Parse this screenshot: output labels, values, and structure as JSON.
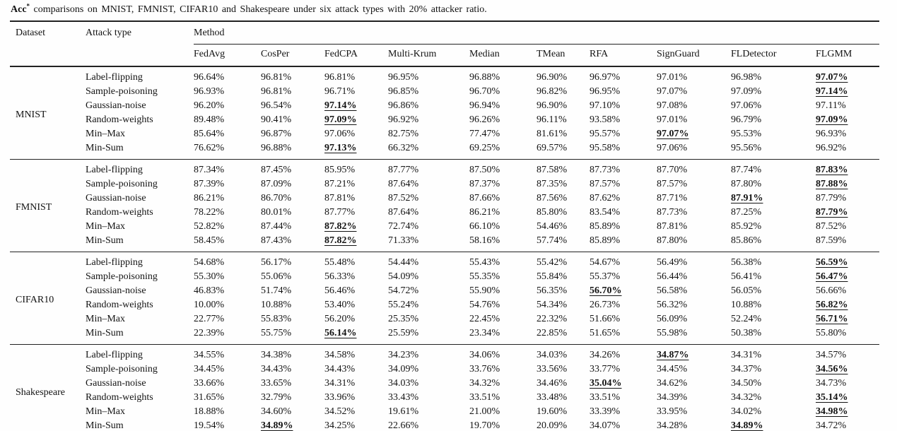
{
  "theme": {
    "ink_color": "#141414",
    "rule_color": "#222222",
    "background": "#fefefe"
  },
  "caption": {
    "label": "Acc",
    "superscript": "*",
    "text": " comparisons on MNIST, FMNIST, CIFAR10 and Shakespeare under six attack types with 20% attacker ratio."
  },
  "table": {
    "headers": {
      "dataset": "Dataset",
      "attack_type": "Attack type",
      "method_group": "Method",
      "methods": [
        "FedAvg",
        "CosPer",
        "FedCPA",
        "Multi-Krum",
        "Median",
        "TMean",
        "RFA",
        "SignGuard",
        "FLDetector",
        "FLGMM"
      ]
    },
    "sections": [
      {
        "dataset": "MNIST",
        "rows": [
          {
            "attack": "Label-flipping",
            "values": [
              "96.64%",
              "96.81%",
              "96.81%",
              "96.95%",
              "96.88%",
              "96.90%",
              "96.97%",
              "97.01%",
              "96.98%",
              "97.07%"
            ],
            "best": [
              9
            ]
          },
          {
            "attack": "Sample-poisoning",
            "values": [
              "96.93%",
              "96.81%",
              "96.71%",
              "96.85%",
              "96.70%",
              "96.82%",
              "96.95%",
              "97.07%",
              "97.09%",
              "97.14%"
            ],
            "best": [
              9
            ]
          },
          {
            "attack": "Gaussian-noise",
            "values": [
              "96.20%",
              "96.54%",
              "97.14%",
              "96.86%",
              "96.94%",
              "96.90%",
              "97.10%",
              "97.08%",
              "97.06%",
              "97.11%"
            ],
            "best": [
              2
            ]
          },
          {
            "attack": "Random-weights",
            "values": [
              "89.48%",
              "90.41%",
              "97.09%",
              "96.92%",
              "96.26%",
              "96.11%",
              "93.58%",
              "97.01%",
              "96.79%",
              "97.09%"
            ],
            "best": [
              2,
              9
            ]
          },
          {
            "attack": "Min–Max",
            "values": [
              "85.64%",
              "96.87%",
              "97.06%",
              "82.75%",
              "77.47%",
              "81.61%",
              "95.57%",
              "97.07%",
              "95.53%",
              "96.93%"
            ],
            "best": [
              7
            ]
          },
          {
            "attack": "Min-Sum",
            "values": [
              "76.62%",
              "96.88%",
              "97.13%",
              "66.32%",
              "69.25%",
              "69.57%",
              "95.58%",
              "97.06%",
              "95.56%",
              "96.92%"
            ],
            "best": [
              2
            ]
          }
        ]
      },
      {
        "dataset": "FMNIST",
        "rows": [
          {
            "attack": "Label-flipping",
            "values": [
              "87.34%",
              "87.45%",
              "85.95%",
              "87.77%",
              "87.50%",
              "87.58%",
              "87.73%",
              "87.70%",
              "87.74%",
              "87.83%"
            ],
            "best": [
              9
            ]
          },
          {
            "attack": "Sample-poisoning",
            "values": [
              "87.39%",
              "87.09%",
              "87.21%",
              "87.64%",
              "87.37%",
              "87.35%",
              "87.57%",
              "87.57%",
              "87.80%",
              "87.88%"
            ],
            "best": [
              9
            ]
          },
          {
            "attack": "Gaussian-noise",
            "values": [
              "86.21%",
              "86.70%",
              "87.81%",
              "87.52%",
              "87.66%",
              "87.56%",
              "87.62%",
              "87.71%",
              "87.91%",
              "87.79%"
            ],
            "best": [
              8
            ]
          },
          {
            "attack": "Random-weights",
            "values": [
              "78.22%",
              "80.01%",
              "87.77%",
              "87.64%",
              "86.21%",
              "85.80%",
              "83.54%",
              "87.73%",
              "87.25%",
              "87.79%"
            ],
            "best": [
              9
            ]
          },
          {
            "attack": "Min–Max",
            "values": [
              "52.82%",
              "87.44%",
              "87.82%",
              "72.74%",
              "66.10%",
              "54.46%",
              "85.89%",
              "87.81%",
              "85.92%",
              "87.52%"
            ],
            "best": [
              2
            ]
          },
          {
            "attack": "Min-Sum",
            "values": [
              "58.45%",
              "87.43%",
              "87.82%",
              "71.33%",
              "58.16%",
              "57.74%",
              "85.89%",
              "87.80%",
              "85.86%",
              "87.59%"
            ],
            "best": [
              2
            ]
          }
        ]
      },
      {
        "dataset": "CIFAR10",
        "rows": [
          {
            "attack": "Label-flipping",
            "values": [
              "54.68%",
              "56.17%",
              "55.48%",
              "54.44%",
              "55.43%",
              "55.42%",
              "54.67%",
              "56.49%",
              "56.38%",
              "56.59%"
            ],
            "best": [
              9
            ]
          },
          {
            "attack": "Sample-poisoning",
            "values": [
              "55.30%",
              "55.06%",
              "56.33%",
              "54.09%",
              "55.35%",
              "55.84%",
              "55.37%",
              "56.44%",
              "56.41%",
              "56.47%"
            ],
            "best": [
              9
            ]
          },
          {
            "attack": "Gaussian-noise",
            "values": [
              "46.83%",
              "51.74%",
              "56.46%",
              "54.72%",
              "55.90%",
              "56.35%",
              "56.70%",
              "56.58%",
              "56.05%",
              "56.66%"
            ],
            "best": [
              6
            ]
          },
          {
            "attack": "Random-weights",
            "values": [
              "10.00%",
              "10.88%",
              "53.40%",
              "55.24%",
              "54.76%",
              "54.34%",
              "26.73%",
              "56.32%",
              "10.88%",
              "56.82%"
            ],
            "best": [
              9
            ]
          },
          {
            "attack": "Min–Max",
            "values": [
              "22.77%",
              "55.83%",
              "56.20%",
              "25.35%",
              "22.45%",
              "22.32%",
              "51.66%",
              "56.09%",
              "52.24%",
              "56.71%"
            ],
            "best": [
              9
            ]
          },
          {
            "attack": "Min-Sum",
            "values": [
              "22.39%",
              "55.75%",
              "56.14%",
              "25.59%",
              "23.34%",
              "22.85%",
              "51.65%",
              "55.98%",
              "50.38%",
              "55.80%"
            ],
            "best": [
              2
            ]
          }
        ]
      },
      {
        "dataset": "Shakespeare",
        "rows": [
          {
            "attack": "Label-flipping",
            "values": [
              "34.55%",
              "34.38%",
              "34.58%",
              "34.23%",
              "34.06%",
              "34.03%",
              "34.26%",
              "34.87%",
              "34.31%",
              "34.57%"
            ],
            "best": [
              7
            ]
          },
          {
            "attack": "Sample-poisoning",
            "values": [
              "34.45%",
              "34.43%",
              "34.43%",
              "34.09%",
              "33.76%",
              "33.56%",
              "33.77%",
              "34.45%",
              "34.37%",
              "34.56%"
            ],
            "best": [
              9
            ]
          },
          {
            "attack": "Gaussian-noise",
            "values": [
              "33.66%",
              "33.65%",
              "34.31%",
              "34.03%",
              "34.32%",
              "34.46%",
              "35.04%",
              "34.62%",
              "34.50%",
              "34.73%"
            ],
            "best": [
              6
            ]
          },
          {
            "attack": "Random-weights",
            "values": [
              "31.65%",
              "32.79%",
              "33.96%",
              "33.43%",
              "33.51%",
              "33.48%",
              "33.51%",
              "34.39%",
              "34.32%",
              "35.14%"
            ],
            "best": [
              9
            ]
          },
          {
            "attack": "Min–Max",
            "values": [
              "18.88%",
              "34.60%",
              "34.52%",
              "19.61%",
              "21.00%",
              "19.60%",
              "33.39%",
              "33.95%",
              "34.02%",
              "34.98%"
            ],
            "best": [
              9
            ]
          },
          {
            "attack": "Min-Sum",
            "values": [
              "19.54%",
              "34.89%",
              "34.25%",
              "22.66%",
              "19.70%",
              "20.09%",
              "34.07%",
              "34.28%",
              "34.89%",
              "34.72%"
            ],
            "best": [
              1,
              8
            ]
          }
        ]
      }
    ]
  }
}
